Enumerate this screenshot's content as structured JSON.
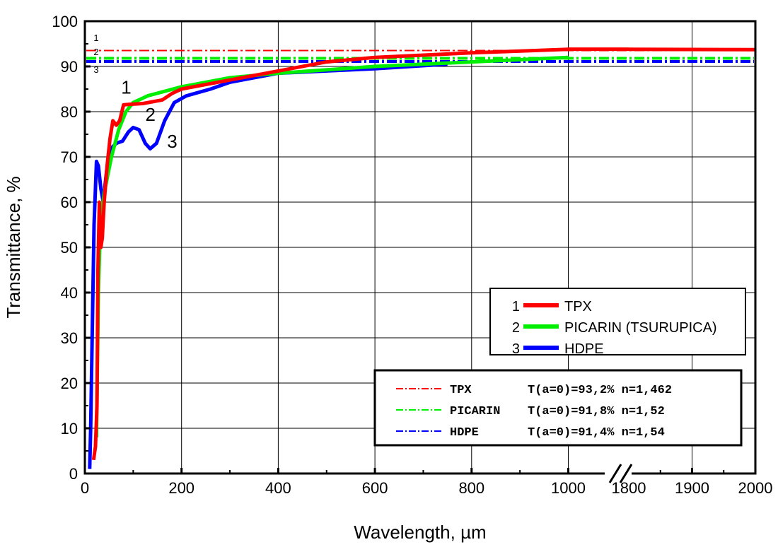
{
  "chart_data": {
    "type": "line",
    "xlabel": "Wavelength, µm",
    "ylabel": "Transmittance, %",
    "xlim": [
      0,
      2000
    ],
    "x_axis_break": [
      1000,
      1800
    ],
    "ylim": [
      0,
      100
    ],
    "grid": true,
    "xticks": [
      0,
      200,
      400,
      600,
      800,
      1000,
      1800,
      1900,
      2000
    ],
    "yticks": [
      0,
      10,
      20,
      30,
      40,
      50,
      60,
      70,
      80,
      90,
      100
    ],
    "legend_placement": "bottom-right",
    "series": [
      {
        "name": "TPX",
        "number": "1",
        "color": "#ff0000",
        "points": [
          [
            18,
            3
          ],
          [
            22,
            6
          ],
          [
            25,
            15
          ],
          [
            27,
            45
          ],
          [
            30,
            60
          ],
          [
            33,
            50
          ],
          [
            36,
            52
          ],
          [
            40,
            60
          ],
          [
            46,
            68
          ],
          [
            52,
            74
          ],
          [
            58,
            78
          ],
          [
            65,
            77
          ],
          [
            72,
            78
          ],
          [
            80,
            81.5
          ],
          [
            90,
            81.6
          ],
          [
            120,
            81.8
          ],
          [
            160,
            82.6
          ],
          [
            180,
            84
          ],
          [
            200,
            85
          ],
          [
            300,
            87
          ],
          [
            400,
            89
          ],
          [
            500,
            91
          ],
          [
            600,
            92
          ],
          [
            800,
            93
          ],
          [
            1000,
            93.8
          ],
          [
            1800,
            93.8
          ],
          [
            2000,
            93.7
          ]
        ]
      },
      {
        "name": "PICARIN (TSURUPICA)",
        "number": "2",
        "color": "#00ee00",
        "points": [
          [
            24,
            8
          ],
          [
            28,
            40
          ],
          [
            32,
            55
          ],
          [
            40,
            62
          ],
          [
            55,
            70
          ],
          [
            70,
            76
          ],
          [
            85,
            80
          ],
          [
            100,
            82
          ],
          [
            130,
            83.5
          ],
          [
            200,
            85.5
          ],
          [
            300,
            87.5
          ],
          [
            400,
            88.5
          ],
          [
            600,
            90
          ],
          [
            800,
            91
          ],
          [
            1000,
            92
          ]
        ]
      },
      {
        "name": "HDPE",
        "number": "3",
        "color": "#0000ff",
        "points": [
          [
            10,
            1
          ],
          [
            12,
            10
          ],
          [
            15,
            30
          ],
          [
            19,
            55
          ],
          [
            24,
            69
          ],
          [
            28,
            68
          ],
          [
            33,
            63
          ],
          [
            38,
            60
          ],
          [
            45,
            67
          ],
          [
            55,
            72
          ],
          [
            65,
            73
          ],
          [
            78,
            73.5
          ],
          [
            90,
            75.5
          ],
          [
            100,
            76.5
          ],
          [
            112,
            76
          ],
          [
            125,
            73
          ],
          [
            135,
            71.8
          ],
          [
            148,
            73
          ],
          [
            165,
            78
          ],
          [
            185,
            82
          ],
          [
            210,
            83.5
          ],
          [
            260,
            85
          ],
          [
            300,
            86.5
          ],
          [
            400,
            88.5
          ],
          [
            500,
            89
          ],
          [
            600,
            89.5
          ],
          [
            750,
            90.5
          ]
        ]
      }
    ],
    "reference_lines": [
      {
        "label": "1",
        "name": "TPX",
        "value": 93.2,
        "color": "#ff0000",
        "text": "T(a=0)=93,2% n=1,462"
      },
      {
        "label": "2",
        "name": "PICARIN",
        "value": 91.8,
        "color": "#00ee00",
        "text": "T(a=0)=91,8% n=1,52"
      },
      {
        "label": "3",
        "name": "HDPE",
        "value": 91.4,
        "color": "#0000ff",
        "text": "T(a=0)=91,4% n=1,54"
      }
    ],
    "curve_labels": [
      {
        "text": "1",
        "x": 75,
        "y": 84
      },
      {
        "text": "2",
        "x": 125,
        "y": 78
      },
      {
        "text": "3",
        "x": 170,
        "y": 72
      }
    ]
  }
}
